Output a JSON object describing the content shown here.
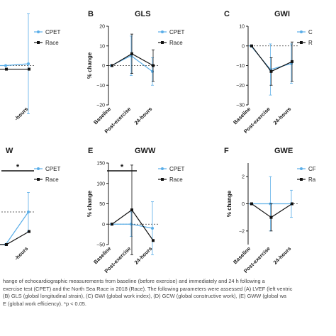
{
  "colors": {
    "cpet": "#5aaee8",
    "race": "#111111",
    "axis": "#1a1a1a",
    "signif": "#111111"
  },
  "caption": {
    "line1": "hange of echocardiographic measurements from baseline (before exercise) and immediately and 24 h following a",
    "line2": "exercise test (CPET) and the North Sea Race in 2018 (Race). The following parameters were assessed (A) LVEF (left ventric",
    "line3": "(B) GLS (global longitudinal strain), (C) GWI (global work index), (D) GCW (global constructive work), (E) GWW (global wa",
    "line4": "E (global work efficiency). *p < 0.05."
  },
  "chart_data": [
    {
      "type": "line",
      "panel_letter": "",
      "title": "",
      "ylabel": "",
      "categories": [
        "Baseline",
        "Post-exercise",
        "24-hours"
      ],
      "category_labels_shown": [
        "",
        "",
        "-hours"
      ],
      "legend": [
        "CPET",
        "Race"
      ],
      "ylim": [
        -22,
        22
      ],
      "yticks": [],
      "ref_line": 0,
      "series": [
        {
          "name": "CPET",
          "values": [
            0,
            0,
            1
          ],
          "err": [
            null,
            null,
            28
          ]
        },
        {
          "name": "Race",
          "values": [
            -2,
            -2,
            -2
          ],
          "err": [
            null,
            null,
            0
          ]
        }
      ]
    },
    {
      "type": "line",
      "panel_letter": "B",
      "title": "GLS",
      "ylabel": "% change",
      "categories": [
        "Baseline",
        "Post-exercise",
        "24-hours"
      ],
      "category_labels_shown": [
        "Baseline",
        "Post-exercise",
        "24-hours"
      ],
      "legend": [
        "CPET",
        "Race"
      ],
      "ylim": [
        -20,
        20
      ],
      "yticks": [
        -20,
        -10,
        0,
        10,
        20
      ],
      "ref_line": 0,
      "series": [
        {
          "name": "CPET",
          "values": [
            0,
            5,
            -3
          ],
          "err": [
            null,
            10,
            7
          ]
        },
        {
          "name": "Race",
          "values": [
            0,
            6,
            0
          ],
          "err": [
            null,
            10,
            8
          ]
        }
      ]
    },
    {
      "type": "line",
      "panel_letter": "C",
      "title": "GWI",
      "ylabel": "",
      "categories": [
        "Baseline",
        "Post-exercise",
        "24-hours"
      ],
      "category_labels_shown": [
        "Baseline",
        "Post-exercise",
        "24-hours"
      ],
      "legend": [
        "C",
        "R"
      ],
      "ylim": [
        -30,
        10
      ],
      "yticks": [
        -30,
        -20,
        -10,
        0,
        10
      ],
      "ref_line": 0,
      "series": [
        {
          "name": "CPET",
          "values": [
            0,
            -12,
            -9
          ],
          "err": [
            null,
            13,
            10
          ]
        },
        {
          "name": "Race",
          "values": [
            0,
            -13,
            -8
          ],
          "err": [
            null,
            7,
            10
          ]
        }
      ]
    },
    {
      "type": "line",
      "panel_letter": "",
      "title": "W",
      "ylabel": "",
      "categories": [
        "Baseline",
        "Post-exercise",
        "24-hours"
      ],
      "category_labels_shown": [
        "",
        "",
        "-hours"
      ],
      "legend": [
        "CPET",
        "Race"
      ],
      "ylim": [
        -20,
        30
      ],
      "yticks": [],
      "ref_line": 0,
      "series": [
        {
          "name": "CPET",
          "values": [
            -20,
            -20,
            0
          ],
          "err": [
            null,
            null,
            12
          ]
        },
        {
          "name": "Race",
          "values": [
            -20,
            -20,
            -12
          ],
          "err": [
            null,
            null,
            0
          ]
        }
      ],
      "significance": {
        "text": "*",
        "from": 1,
        "to": 2
      }
    },
    {
      "type": "line",
      "panel_letter": "E",
      "title": "GWW",
      "ylabel": "% change",
      "categories": [
        "Baseline",
        "Post-exercise",
        "24-hours"
      ],
      "category_labels_shown": [
        "Baseline",
        "Post-exercise",
        "24-hours"
      ],
      "legend": [
        "CPET",
        "Race"
      ],
      "ylim": [
        -50,
        150
      ],
      "yticks": [
        -50,
        0,
        50,
        100,
        150
      ],
      "ref_line": 0,
      "series": [
        {
          "name": "CPET",
          "values": [
            0,
            0,
            -10
          ],
          "err": [
            null,
            30,
            65
          ]
        },
        {
          "name": "Race",
          "values": [
            0,
            35,
            -40
          ],
          "err": [
            null,
            110,
            0
          ]
        }
      ],
      "significance": {
        "text": "*",
        "from": 0,
        "to": 1
      }
    },
    {
      "type": "line",
      "panel_letter": "F",
      "title": "GWE",
      "ylabel": "% change",
      "categories": [
        "Baseline",
        "Post-exercise",
        "24-hours"
      ],
      "category_labels_shown": [
        "Baseline",
        "Post-exercise",
        "24-hours"
      ],
      "legend": [
        "CF",
        "Ra"
      ],
      "ylim": [
        -3,
        3
      ],
      "yticks": [
        -2,
        0,
        2
      ],
      "ref_line": 0,
      "series": [
        {
          "name": "CPET",
          "values": [
            0,
            0,
            0
          ],
          "err": [
            null,
            2,
            1
          ]
        },
        {
          "name": "Race",
          "values": [
            0,
            -1,
            0
          ],
          "err": [
            null,
            1,
            0
          ]
        }
      ]
    }
  ]
}
